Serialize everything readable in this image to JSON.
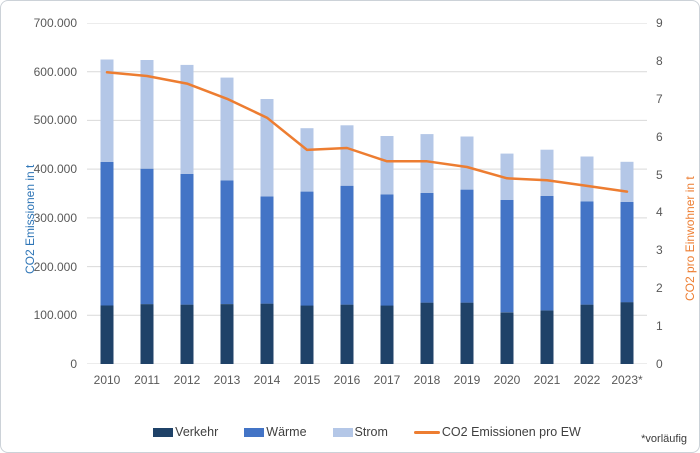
{
  "axes": {
    "left": {
      "title": "CO2 Emissionen in t",
      "ticks": [
        "700.000",
        "600.000",
        "500.000",
        "400.000",
        "300.000",
        "200.000",
        "100.000",
        "0"
      ],
      "title_color": "#2E75B6"
    },
    "right": {
      "title": "CO2  pro Einwohner in t",
      "ticks": [
        "9",
        "8",
        "7",
        "6",
        "5",
        "4",
        "3",
        "2",
        "1",
        "0"
      ],
      "title_color": "#ED7D31"
    }
  },
  "legend": [
    {
      "label": "Verkehr",
      "swatch": "box",
      "color": "#1F4268"
    },
    {
      "label": "Wärme",
      "swatch": "box",
      "color": "#4374C6"
    },
    {
      "label": "Strom",
      "swatch": "box",
      "color": "#B4C7E7"
    },
    {
      "label": "CO2 Emissionen pro EW",
      "swatch": "line",
      "color": "#ED7D31"
    }
  ],
  "footnote": "*vorläufig",
  "chart_data": {
    "type": "bar",
    "subtype": "stacked-with-line",
    "categories": [
      "2010",
      "2011",
      "2012",
      "2013",
      "2014",
      "2015",
      "2016",
      "2017",
      "2018",
      "2019",
      "2020",
      "2021",
      "2022",
      "2023*"
    ],
    "series": [
      {
        "name": "Verkehr",
        "type": "bar",
        "axis": "left",
        "color": "#1F4268",
        "values": [
          120000,
          123000,
          122000,
          123000,
          124000,
          120000,
          122000,
          120000,
          126000,
          126000,
          106000,
          110000,
          122000,
          127000
        ]
      },
      {
        "name": "Wärme",
        "type": "bar",
        "axis": "left",
        "color": "#4374C6",
        "values": [
          295000,
          278000,
          268000,
          254000,
          220000,
          234000,
          244000,
          228000,
          225000,
          232000,
          231000,
          235000,
          212000,
          206000
        ]
      },
      {
        "name": "Strom",
        "type": "bar",
        "axis": "left",
        "color": "#B4C7E7",
        "values": [
          210000,
          223000,
          224000,
          211000,
          200000,
          130000,
          124000,
          120000,
          121000,
          109000,
          95000,
          95000,
          92000,
          82000
        ]
      },
      {
        "name": "CO2 Emissionen pro EW",
        "type": "line",
        "axis": "right",
        "color": "#ED7D31",
        "values": [
          7.7,
          7.6,
          7.4,
          7.0,
          6.5,
          5.65,
          5.7,
          5.35,
          5.35,
          5.2,
          4.9,
          4.85,
          4.7,
          4.55
        ]
      }
    ],
    "title": "",
    "xlabel": "",
    "ylabel_left": "CO2 Emissionen in t",
    "ylabel_right": "CO2 pro Einwohner in t",
    "ylim_left": [
      0,
      700000
    ],
    "ylim_right": [
      0,
      9
    ],
    "grid": true,
    "gridline_color": "#D9D9D9",
    "legend_position": "bottom",
    "footnote": "*vorläufig"
  }
}
